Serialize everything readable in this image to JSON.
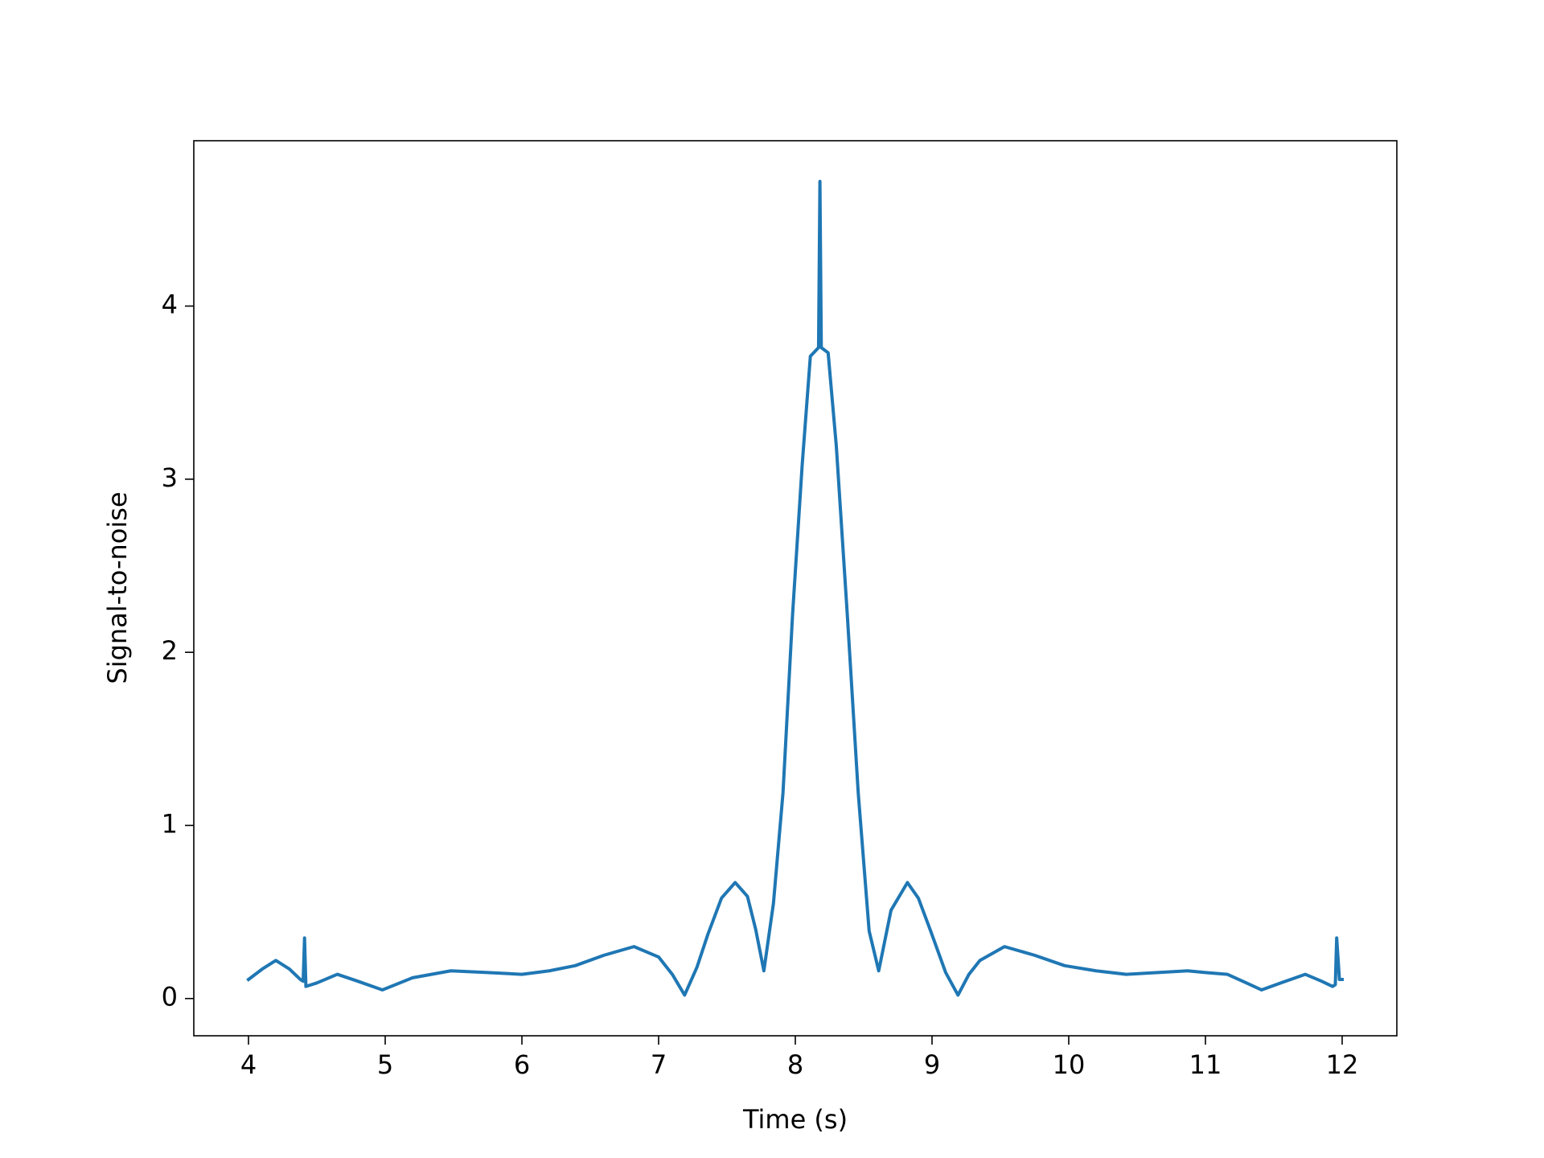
{
  "chart_data": {
    "type": "line",
    "xlabel": "Time (s)",
    "ylabel": "Signal-to-noise",
    "x": [
      4.0,
      4.1,
      4.2,
      4.3,
      4.38,
      4.4,
      4.41,
      4.42,
      4.5,
      4.65,
      4.8,
      4.98,
      5.2,
      5.48,
      5.75,
      6.0,
      6.2,
      6.39,
      6.6,
      6.82,
      7.0,
      7.1,
      7.19,
      7.28,
      7.36,
      7.46,
      7.56,
      7.65,
      7.71,
      7.77,
      7.84,
      7.91,
      7.98,
      8.05,
      8.11,
      8.17,
      8.18,
      8.19,
      8.24,
      8.3,
      8.38,
      8.46,
      8.54,
      8.61,
      8.7,
      8.82,
      8.9,
      8.99,
      9.1,
      9.19,
      9.27,
      9.35,
      9.53,
      9.75,
      9.97,
      10.2,
      10.42,
      10.65,
      10.87,
      11.0,
      11.16,
      11.3,
      11.41,
      11.55,
      11.73,
      11.85,
      11.93,
      11.95,
      11.96,
      11.98,
      12.0
    ],
    "series": [
      {
        "name": "Signal-to-noise",
        "color": "#1f77b4",
        "values": [
          0.11,
          0.17,
          0.22,
          0.17,
          0.11,
          0.1,
          0.35,
          0.07,
          0.09,
          0.14,
          0.1,
          0.05,
          0.12,
          0.16,
          0.15,
          0.14,
          0.16,
          0.19,
          0.25,
          0.3,
          0.24,
          0.14,
          0.02,
          0.18,
          0.37,
          0.58,
          0.67,
          0.59,
          0.4,
          0.16,
          0.55,
          1.19,
          2.22,
          3.08,
          3.71,
          3.76,
          4.72,
          3.76,
          3.73,
          3.19,
          2.22,
          1.19,
          0.39,
          0.16,
          0.51,
          0.67,
          0.58,
          0.39,
          0.15,
          0.02,
          0.14,
          0.22,
          0.3,
          0.25,
          0.19,
          0.16,
          0.14,
          0.15,
          0.16,
          0.15,
          0.14,
          0.09,
          0.05,
          0.09,
          0.14,
          0.1,
          0.07,
          0.08,
          0.35,
          0.11,
          0.11
        ]
      }
    ],
    "xlim": [
      3.6,
      12.4
    ],
    "ylim": [
      -0.215,
      4.955
    ],
    "xticks": [
      4,
      5,
      6,
      7,
      8,
      9,
      10,
      11,
      12
    ],
    "yticks": [
      0,
      1,
      2,
      3,
      4
    ],
    "grid": false
  }
}
